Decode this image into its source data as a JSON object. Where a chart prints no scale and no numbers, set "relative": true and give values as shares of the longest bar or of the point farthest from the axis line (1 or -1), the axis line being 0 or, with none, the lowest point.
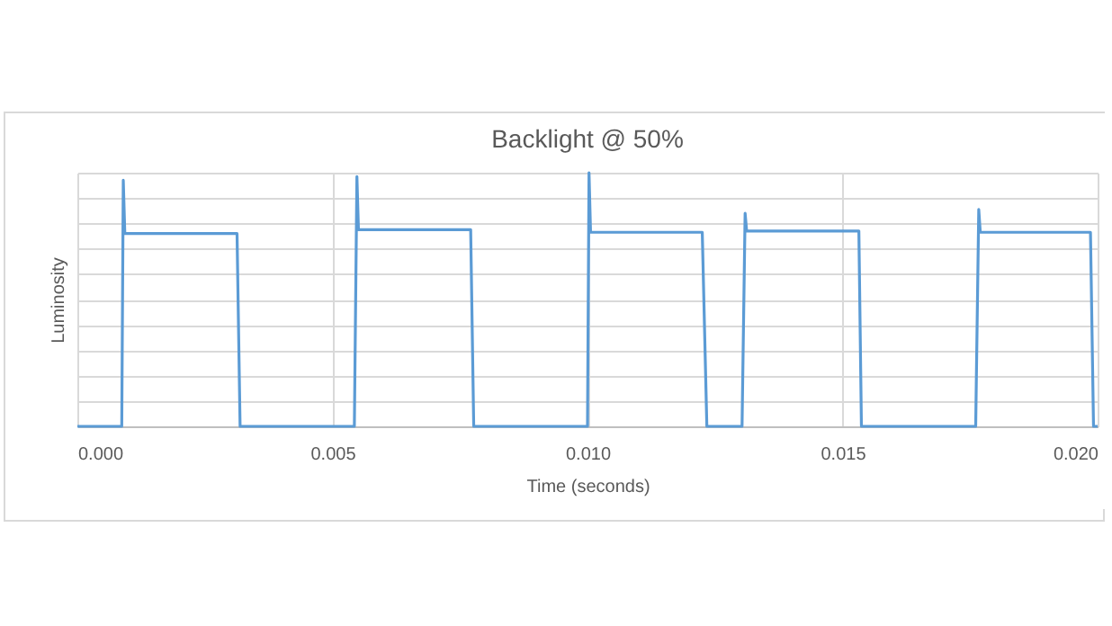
{
  "chart_data": {
    "type": "line",
    "title": "Backlight @ 50%",
    "xlabel": "Time (seconds)",
    "ylabel": "Luminosity",
    "relative": true,
    "grid": true,
    "marker": "none",
    "line_style": "solid",
    "xlim": [
      0,
      0.02
    ],
    "xticks": [
      {
        "value": 0,
        "label": "0.000"
      },
      {
        "value": 0.005,
        "label": "0.005"
      },
      {
        "value": 0.01,
        "label": "0.010"
      },
      {
        "value": 0.015,
        "label": "0.015"
      },
      {
        "value": 0.02,
        "label": "0.020"
      }
    ],
    "series": [
      {
        "color": "#5b9bd5",
        "x": [
          0,
          0.00087,
          0.0009,
          0.00093,
          0.00313,
          0.00319,
          0.00543,
          0.00548,
          0.00551,
          0.00771,
          0.00777,
          0.01,
          0.01003,
          0.01006,
          0.01225,
          0.01234,
          0.01303,
          0.01309,
          0.01312,
          0.01532,
          0.01537,
          0.01761,
          0.01767,
          0.0177,
          0.01986,
          0.01992,
          0.02
        ],
        "values": [
          0,
          0,
          0.97,
          0.76,
          0.76,
          0,
          0,
          0.985,
          0.775,
          0.775,
          0,
          0,
          1,
          0.765,
          0.765,
          0,
          0,
          0.84,
          0.77,
          0.77,
          0,
          0,
          0.855,
          0.765,
          0.765,
          0,
          0
        ]
      }
    ]
  }
}
